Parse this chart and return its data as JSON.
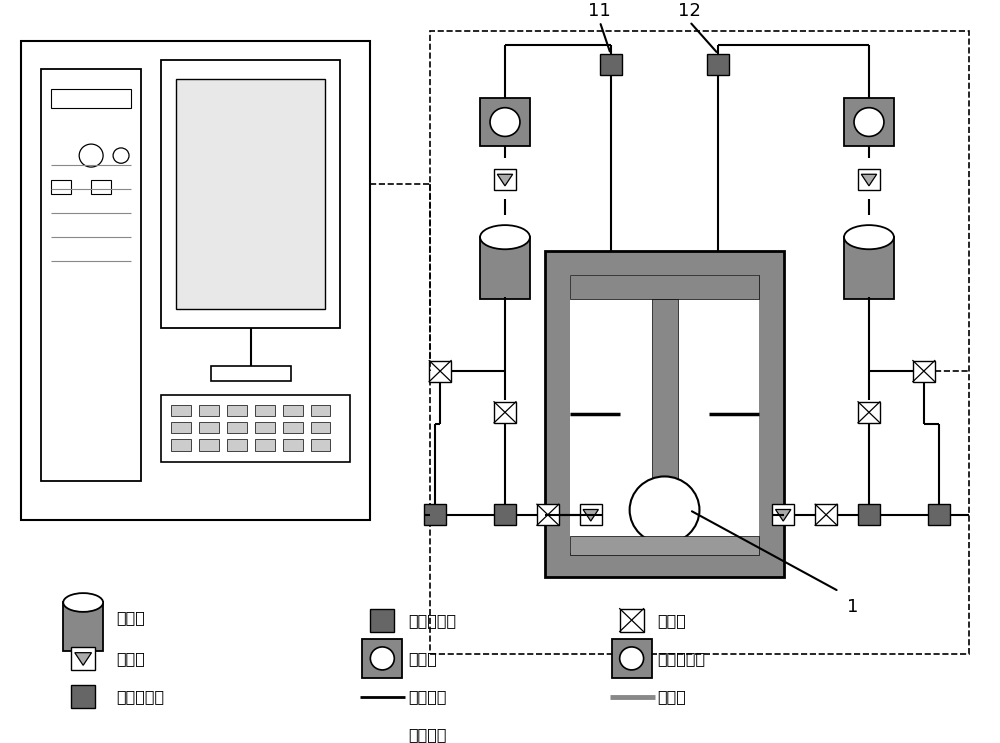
{
  "bg": "#ffffff",
  "lc": "#000000",
  "gc": "#888888",
  "dgc": "#666666",
  "fig_w": 10.0,
  "fig_h": 7.43,
  "dpi": 100,
  "legend_col1_labels": [
    "缓冲罐",
    "单向阀",
    "数显流量计"
  ],
  "legend_col2_labels": [
    "数显压力表",
    "真空泵",
    "气体管路",
    "通信线缆"
  ],
  "legend_col3_labels": [
    "控制阀",
    "空气压缩泵",
    "温度计"
  ],
  "label_11": "11",
  "label_12": "12",
  "label_1": "1"
}
